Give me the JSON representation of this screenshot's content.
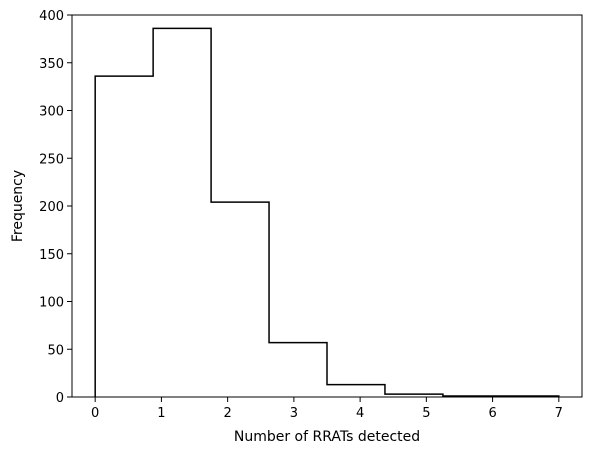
{
  "chart_data": {
    "type": "histogram",
    "title": "",
    "xlabel": "Number of RRATs detected",
    "ylabel": "Frequency",
    "bin_edges": [
      0,
      0.875,
      1.75,
      2.625,
      3.5,
      4.375,
      5.25,
      6.125,
      7
    ],
    "counts": [
      336,
      386,
      204,
      57,
      13,
      3,
      1,
      1
    ],
    "xlim": [
      -0.35,
      7.35
    ],
    "ylim": [
      0,
      400
    ],
    "x_ticks": [
      0,
      1,
      2,
      3,
      4,
      5,
      6,
      7
    ],
    "y_ticks": [
      0,
      50,
      100,
      150,
      200,
      250,
      300,
      350,
      400
    ],
    "grid": false,
    "style": "step",
    "line_color": "#000000"
  }
}
